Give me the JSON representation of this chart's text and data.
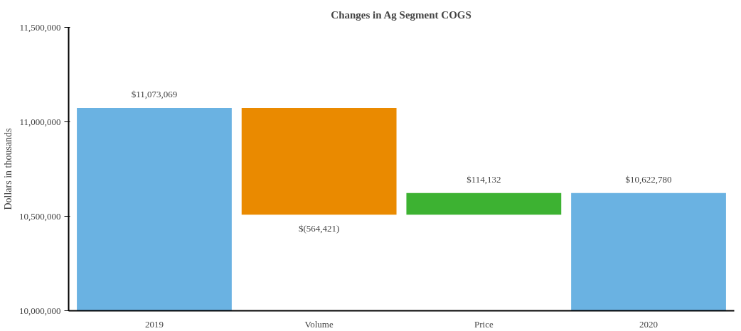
{
  "chart_data": {
    "type": "bar",
    "title": "Changes in Ag Segment COGS",
    "ylabel": "Dollars in thousands",
    "categories": [
      "2019",
      "Volume",
      "Price",
      "2020"
    ],
    "base": [
      10000000,
      11073069,
      10508648,
      10000000
    ],
    "values": [
      1073069,
      -564421,
      114132,
      622780
    ],
    "colors": [
      "#6ab2e2",
      "#ea8a00",
      "#3db232",
      "#6ab2e2"
    ],
    "value_labels": [
      "$11,073,069",
      "$(564,421)",
      "$114,132",
      "$10,622,780"
    ],
    "ylim": [
      10000000,
      11500000
    ],
    "yticks": [
      {
        "value": 10000000,
        "label": "10,000,000"
      },
      {
        "value": 10500000,
        "label": "10,500,000"
      },
      {
        "value": 11000000,
        "label": "11,000,000"
      },
      {
        "value": 11500000,
        "label": "11,500,000"
      }
    ],
    "grid": false
  }
}
